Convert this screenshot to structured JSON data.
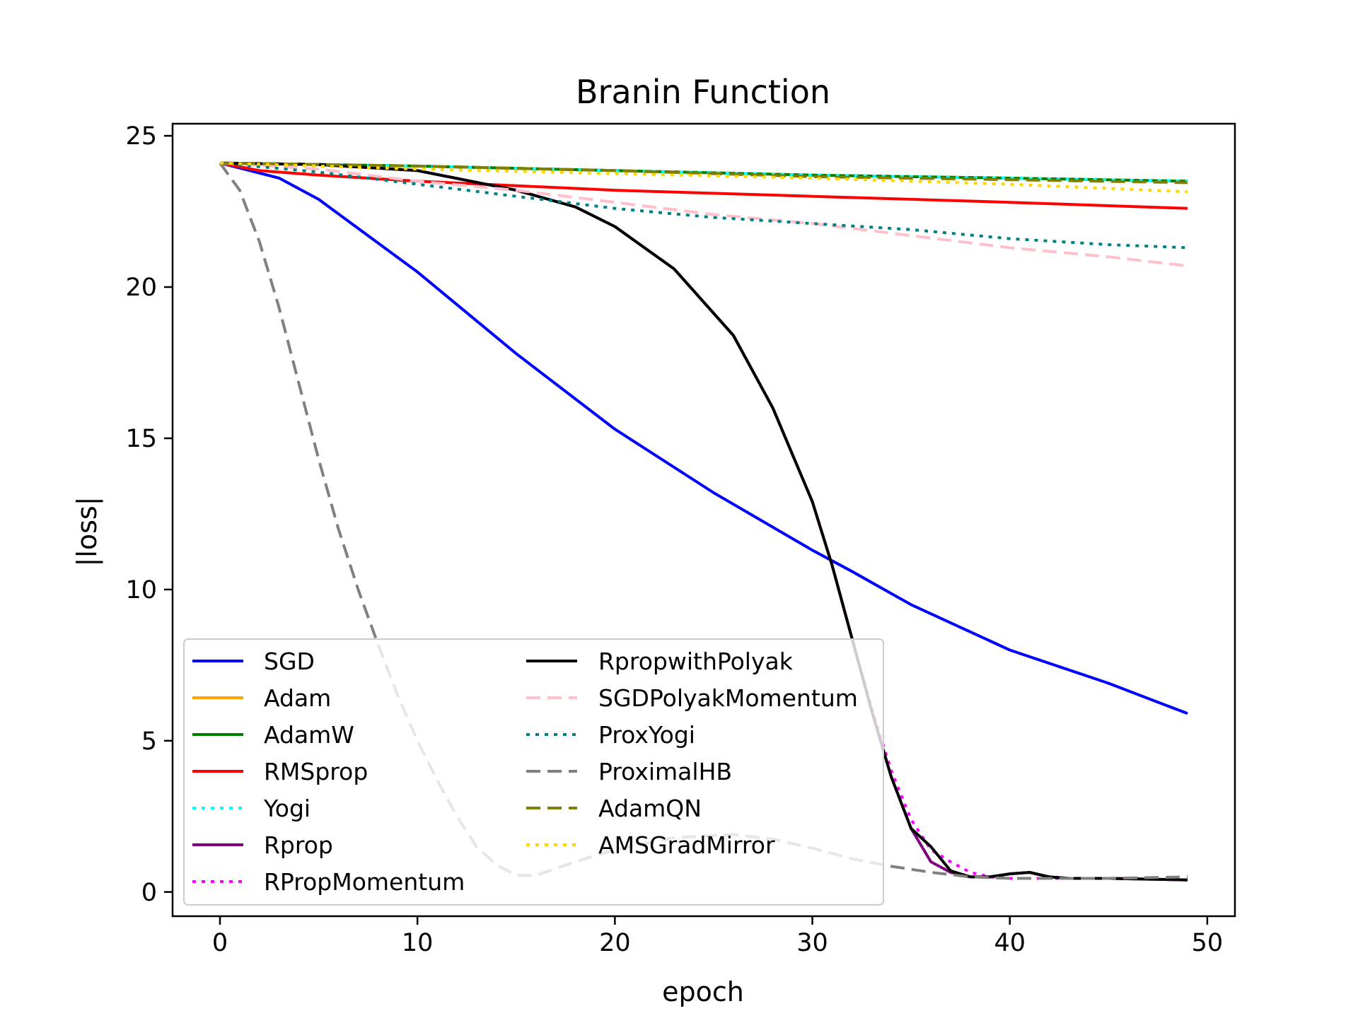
{
  "chart_data": {
    "type": "line",
    "title": "Branin Function",
    "xlabel": "epoch",
    "ylabel": "|loss|",
    "xlim": [
      -2.4,
      51.4
    ],
    "ylim": [
      -0.8,
      25.4
    ],
    "xticks": [
      0,
      10,
      20,
      30,
      40,
      50
    ],
    "yticks": [
      0,
      5,
      10,
      15,
      20,
      25
    ],
    "grid": false,
    "legend_position": "lower-left",
    "series": [
      {
        "name": "SGD",
        "color": "#0000ff",
        "dash": "solid",
        "x": [
          0,
          3,
          5,
          10,
          15,
          20,
          25,
          30,
          32,
          35,
          40,
          45,
          49
        ],
        "y": [
          24.1,
          23.6,
          22.9,
          20.5,
          17.8,
          15.3,
          13.2,
          11.3,
          10.6,
          9.5,
          8.0,
          6.9,
          5.9
        ]
      },
      {
        "name": "Adam",
        "color": "#ffa500",
        "dash": "solid",
        "x": [
          0,
          10,
          20,
          30,
          40,
          49
        ],
        "y": [
          24.1,
          24.0,
          23.85,
          23.7,
          23.6,
          23.5
        ]
      },
      {
        "name": "AdamW",
        "color": "#008000",
        "dash": "solid",
        "x": [
          0,
          10,
          20,
          30,
          40,
          49
        ],
        "y": [
          24.1,
          24.0,
          23.85,
          23.7,
          23.6,
          23.5
        ]
      },
      {
        "name": "RMSprop",
        "color": "#ff0000",
        "dash": "solid",
        "x": [
          0,
          2,
          5,
          10,
          20,
          30,
          40,
          49
        ],
        "y": [
          24.1,
          23.85,
          23.7,
          23.5,
          23.2,
          23.0,
          22.8,
          22.6
        ]
      },
      {
        "name": "Yogi",
        "color": "#00ffff",
        "dash": "dotted",
        "x": [
          0,
          10,
          20,
          30,
          40,
          49
        ],
        "y": [
          24.1,
          24.0,
          23.85,
          23.7,
          23.6,
          23.5
        ]
      },
      {
        "name": "Rprop",
        "color": "#800080",
        "dash": "solid",
        "x": [
          0,
          5,
          10,
          15,
          18,
          20,
          23,
          26,
          28,
          30,
          31,
          32,
          33,
          34,
          35,
          36,
          37,
          38,
          39,
          40,
          41,
          42,
          43,
          45,
          49
        ],
        "y": [
          24.1,
          24.05,
          23.85,
          23.2,
          22.65,
          22.0,
          20.6,
          18.4,
          16.0,
          12.9,
          10.8,
          8.4,
          6.0,
          3.8,
          2.1,
          1.0,
          0.65,
          0.5,
          0.5,
          0.6,
          0.65,
          0.5,
          0.45,
          0.45,
          0.4
        ]
      },
      {
        "name": "RPropMomentum",
        "color": "#ff00ff",
        "dash": "dotted",
        "x": [
          0,
          5,
          10,
          15,
          18,
          20,
          23,
          26,
          28,
          30,
          31,
          32,
          33,
          34,
          35,
          36,
          37,
          38,
          39,
          40,
          41,
          42,
          43,
          45,
          49
        ],
        "y": [
          24.1,
          24.05,
          23.85,
          23.2,
          22.65,
          22.0,
          20.6,
          18.4,
          16.0,
          12.9,
          10.8,
          8.4,
          6.1,
          4.0,
          2.4,
          1.4,
          1.0,
          0.65,
          0.5,
          0.45,
          0.45,
          0.45,
          0.45,
          0.45,
          0.4
        ]
      },
      {
        "name": "RpropwithPolyak",
        "color": "#000000",
        "dash": "solid",
        "x": [
          0,
          5,
          10,
          15,
          18,
          20,
          23,
          26,
          28,
          30,
          31,
          32,
          33,
          34,
          35,
          36,
          37,
          38,
          39,
          40,
          41,
          42,
          43,
          45,
          49
        ],
        "y": [
          24.1,
          24.05,
          23.85,
          23.2,
          22.65,
          22.0,
          20.6,
          18.4,
          16.0,
          12.9,
          10.8,
          8.4,
          6.0,
          3.8,
          2.1,
          1.5,
          0.7,
          0.5,
          0.5,
          0.6,
          0.65,
          0.5,
          0.45,
          0.45,
          0.4
        ]
      },
      {
        "name": "SGDPolyakMomentum",
        "color": "#ffc0cb",
        "dash": "dashed",
        "x": [
          0,
          5,
          10,
          15,
          20,
          25,
          30,
          35,
          40,
          45,
          49
        ],
        "y": [
          24.1,
          23.9,
          23.5,
          23.2,
          22.8,
          22.4,
          22.1,
          21.7,
          21.3,
          21.0,
          20.7
        ]
      },
      {
        "name": "ProxYogi",
        "color": "#008080",
        "dash": "dotted",
        "x": [
          0,
          5,
          10,
          15,
          20,
          25,
          30,
          35,
          40,
          45,
          49
        ],
        "y": [
          24.1,
          23.8,
          23.4,
          23.0,
          22.6,
          22.3,
          22.1,
          21.9,
          21.6,
          21.4,
          21.3
        ]
      },
      {
        "name": "ProximalHB",
        "color": "#808080",
        "dash": "dashed",
        "x": [
          0,
          1,
          2,
          3,
          4,
          5,
          6,
          7,
          8,
          9,
          10,
          11,
          12,
          13,
          14,
          15,
          16,
          18,
          20,
          23,
          26,
          28,
          30,
          32,
          34,
          36,
          38,
          40,
          45,
          49
        ],
        "y": [
          24.1,
          23.2,
          21.5,
          19.3,
          16.8,
          14.3,
          12.0,
          10.0,
          8.2,
          6.5,
          5.0,
          3.7,
          2.5,
          1.5,
          0.9,
          0.55,
          0.55,
          1.0,
          1.4,
          1.8,
          1.9,
          1.75,
          1.45,
          1.1,
          0.85,
          0.65,
          0.5,
          0.45,
          0.45,
          0.5
        ]
      },
      {
        "name": "AdamQN",
        "color": "#808000",
        "dash": "dashed",
        "x": [
          0,
          10,
          20,
          30,
          40,
          49
        ],
        "y": [
          24.1,
          24.0,
          23.85,
          23.65,
          23.55,
          23.45
        ]
      },
      {
        "name": "AMSGradMirror",
        "color": "#ffd700",
        "dash": "dotted",
        "x": [
          0,
          10,
          20,
          30,
          40,
          49
        ],
        "y": [
          24.1,
          23.9,
          23.75,
          23.6,
          23.4,
          23.15
        ]
      }
    ]
  }
}
